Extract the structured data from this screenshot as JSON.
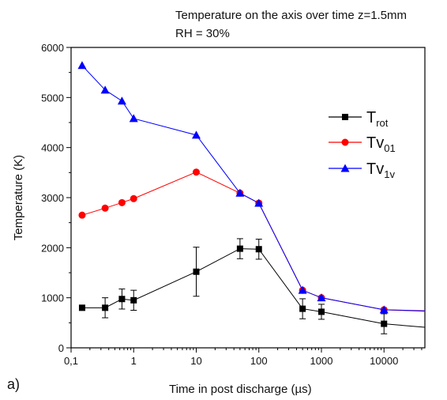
{
  "panel_label": "a)",
  "chart_data": {
    "type": "line",
    "title_lines": [
      "Temperature on the axis over time z=1.5mm",
      "RH = 30%"
    ],
    "xlabel": "Time in post discharge (µs)",
    "ylabel": "Temperature (K)",
    "x_scale": "log",
    "xlim": [
      0.1,
      45000
    ],
    "ylim": [
      0,
      6000
    ],
    "x_ticks": [
      0.1,
      1,
      10,
      100,
      1000,
      10000
    ],
    "x_tick_labels": [
      "0,1",
      "1",
      "10",
      "100",
      "1000",
      "10000"
    ],
    "y_ticks": [
      0,
      1000,
      2000,
      3000,
      4000,
      5000,
      6000
    ],
    "y_tick_labels": [
      "0",
      "1000",
      "2000",
      "3000",
      "4000",
      "5000",
      "6000"
    ],
    "grid": false,
    "legend_position": "right",
    "series": [
      {
        "label_main": "T",
        "label_sub": "rot",
        "color": "#000000",
        "marker": "square",
        "x": [
          0.15,
          0.35,
          0.65,
          1,
          10,
          50,
          100,
          500,
          1000,
          10000
        ],
        "y": [
          800,
          800,
          975,
          950,
          1520,
          1980,
          1970,
          780,
          720,
          480
        ],
        "err": [
          0,
          200,
          200,
          200,
          490,
          200,
          200,
          200,
          150,
          200
        ],
        "tail": {
          "x": 45000,
          "y": 410
        }
      },
      {
        "label_main": "Tv",
        "label_sub": "01",
        "color": "#ff0000",
        "marker": "circle",
        "x": [
          0.15,
          0.35,
          0.65,
          1,
          10,
          50,
          100,
          500,
          1000,
          10000
        ],
        "y": [
          2650,
          2790,
          2900,
          2980,
          3510,
          3090,
          2890,
          1150,
          1000,
          760
        ],
        "err": [],
        "tail": {
          "x": 45000,
          "y": 730
        }
      },
      {
        "label_main": "Tv",
        "label_sub": "1v",
        "color": "#0000ff",
        "marker": "triangle",
        "x": [
          0.15,
          0.35,
          0.65,
          1,
          10,
          50,
          100,
          500,
          1000,
          10000
        ],
        "y": [
          5640,
          5150,
          4930,
          4580,
          4250,
          3090,
          2890,
          1150,
          1000,
          760
        ],
        "err": [],
        "tail": {
          "x": 45000,
          "y": 740
        }
      }
    ]
  }
}
